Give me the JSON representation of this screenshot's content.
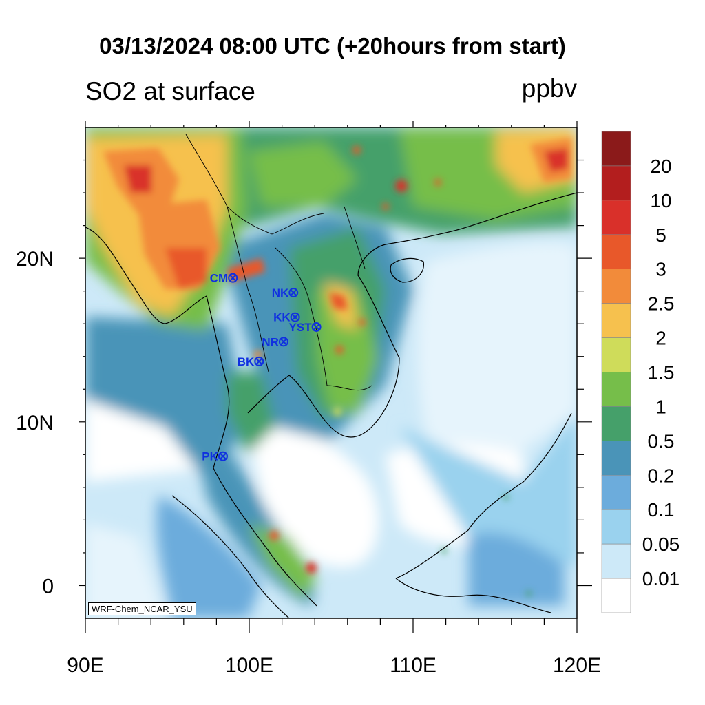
{
  "title": "03/13/2024 08:00 UTC (+20hours from start)",
  "subtitle_left": "SO2 at surface",
  "subtitle_right": "ppbv",
  "credit": "WRF-Chem_NCAR_YSU",
  "x_ticks": [
    {
      "label": "90E",
      "lon": 90
    },
    {
      "label": "100E",
      "lon": 100
    },
    {
      "label": "110E",
      "lon": 110
    },
    {
      "label": "120E",
      "lon": 120
    }
  ],
  "y_ticks": [
    {
      "label": "20N",
      "lat": 20
    },
    {
      "label": "10N",
      "lat": 10
    },
    {
      "label": "0",
      "lat": 0
    }
  ],
  "extent": {
    "lon_min": 90,
    "lon_max": 120,
    "lat_min": -2,
    "lat_max": 28
  },
  "colorbar": {
    "labels": [
      "20",
      "10",
      "5",
      "3",
      "2.5",
      "2",
      "1.5",
      "1",
      "0.5",
      "0.2",
      "0.1",
      "0.05",
      "0.01"
    ],
    "colors": [
      "#8b1a1a",
      "#b31e1e",
      "#d9302a",
      "#e8582a",
      "#f28b3a",
      "#f6c14e",
      "#cfdc5a",
      "#76be4a",
      "#45a06a",
      "#4a94b8",
      "#6cacdc",
      "#9ad2ee",
      "#cde9f8",
      "#ffffff"
    ]
  },
  "stations": [
    {
      "code": "CM",
      "lon": 99.0,
      "lat": 18.8
    },
    {
      "code": "NK",
      "lon": 102.7,
      "lat": 17.9
    },
    {
      "code": "KK",
      "lon": 102.8,
      "lat": 16.4
    },
    {
      "code": "YST",
      "lon": 104.1,
      "lat": 15.8
    },
    {
      "code": "NR",
      "lon": 102.1,
      "lat": 14.9
    },
    {
      "code": "BK",
      "lon": 100.6,
      "lat": 13.7
    },
    {
      "code": "PK",
      "lon": 98.4,
      "lat": 7.9
    }
  ]
}
